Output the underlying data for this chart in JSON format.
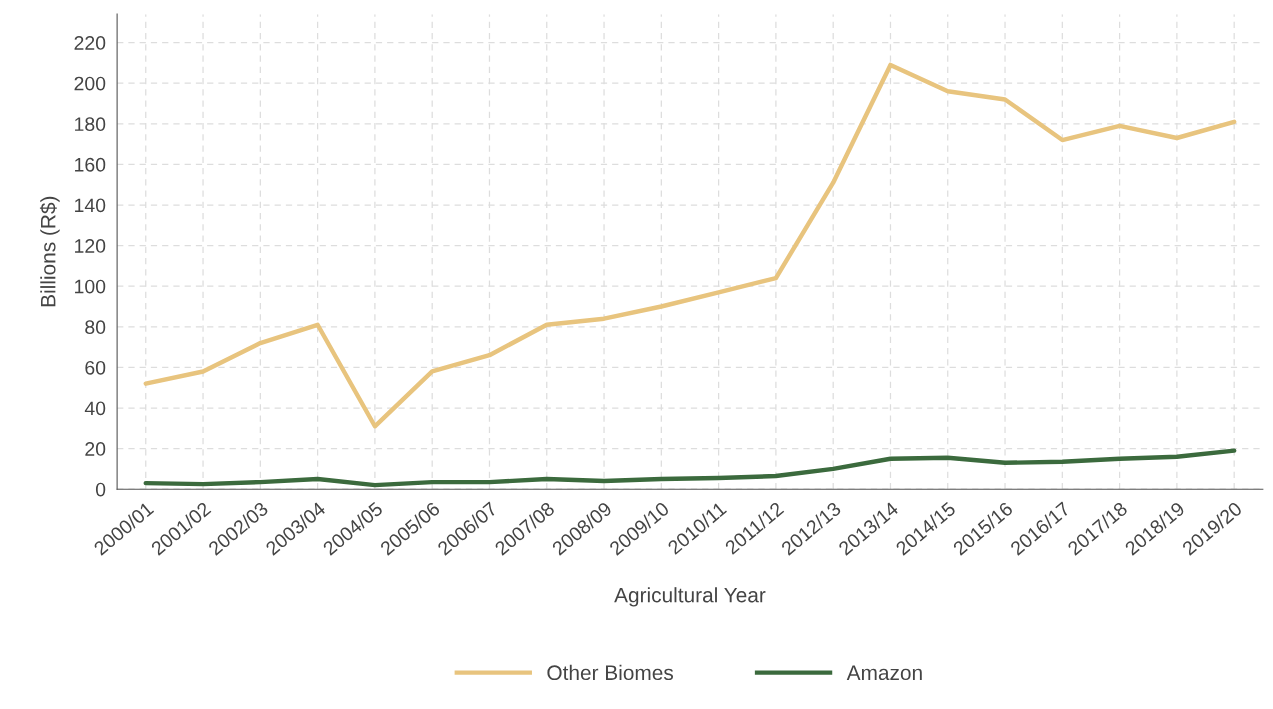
{
  "chart_data": {
    "type": "line",
    "xlabel": "Agricultural Year",
    "ylabel": "Billions (R$)",
    "categories": [
      "2000/01",
      "2001/02",
      "2002/03",
      "2003/04",
      "2004/05",
      "2005/06",
      "2006/07",
      "2007/08",
      "2008/09",
      "2009/10",
      "2010/11",
      "2011/12",
      "2012/13",
      "2013/14",
      "2014/15",
      "2015/16",
      "2016/17",
      "2017/18",
      "2018/19",
      "2019/20"
    ],
    "series": [
      {
        "name": "Other Biomes",
        "color": "#e8c47e",
        "values": [
          52,
          58,
          72,
          81,
          31,
          58,
          66,
          81,
          84,
          90,
          97,
          104,
          151,
          209,
          196,
          192,
          172,
          179,
          173,
          181
        ]
      },
      {
        "name": "Amazon",
        "color": "#3b6a3d",
        "values": [
          3,
          2.5,
          3.5,
          5,
          2,
          3.5,
          3.5,
          5,
          4,
          5,
          5.5,
          6.5,
          10,
          15,
          15.5,
          13,
          13.5,
          15,
          16,
          19
        ]
      }
    ],
    "ylim": [
      0,
      234
    ],
    "yticks": [
      0,
      20,
      40,
      60,
      80,
      100,
      120,
      140,
      160,
      180,
      200,
      220
    ],
    "grid": true,
    "legend": "bottom",
    "marker": "none",
    "line_style": "solid"
  }
}
